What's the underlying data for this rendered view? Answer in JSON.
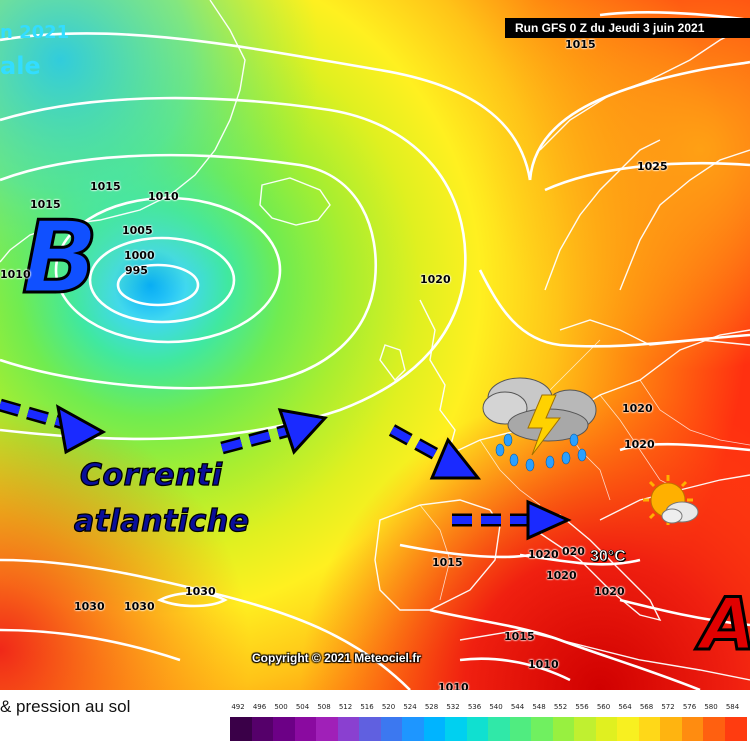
{
  "map": {
    "title_partial": "n 2021",
    "title_partial_2": "ale",
    "run_label": "Run GFS 0 Z du Jeudi 3 juin 2021",
    "copyright": "Copyright © 2021 Meteociel.fr",
    "low_label": "B",
    "high_label": "A",
    "caption_line1": "Correnti",
    "caption_line2": "atlantiche",
    "temperature": "30°C",
    "colors": {
      "low_blue": "#1050ff",
      "high_red": "#e00000",
      "caption_blue": "#0a0f9a",
      "arrow_blue": "#1a2aff"
    },
    "isobar_labels": [
      {
        "text": "1015",
        "id": "iso-1015-a"
      },
      {
        "text": "1015",
        "id": "iso-1015-b"
      },
      {
        "text": "1010",
        "id": "iso-1010-a"
      },
      {
        "text": "1005",
        "id": "iso-1005"
      },
      {
        "text": "1000",
        "id": "iso-1000"
      },
      {
        "text": "995",
        "id": "iso-995"
      },
      {
        "text": "1010",
        "id": "iso-1010-b"
      },
      {
        "text": "1025",
        "id": "iso-1025"
      },
      {
        "text": "1020",
        "id": "iso-1020-a"
      },
      {
        "text": "1020",
        "id": "iso-1020-b"
      },
      {
        "text": "1020",
        "id": "iso-1020-c"
      },
      {
        "text": "1015",
        "id": "iso-1015-c"
      },
      {
        "text": "1020",
        "id": "iso-1020-d"
      },
      {
        "text": "020",
        "id": "iso-020"
      },
      {
        "text": "1020",
        "id": "iso-1020-e"
      },
      {
        "text": "1020",
        "id": "iso-1020-f"
      },
      {
        "text": "1030",
        "id": "iso-1030-a"
      },
      {
        "text": "1030",
        "id": "iso-1030-b"
      },
      {
        "text": "1030",
        "id": "iso-1030-c"
      },
      {
        "text": "1015",
        "id": "iso-1015-d"
      },
      {
        "text": "1010",
        "id": "iso-1010-c"
      },
      {
        "text": "1010",
        "id": "iso-1010-d"
      },
      {
        "text": "1015",
        "id": "iso-1015-top"
      }
    ],
    "icons": [
      "thunderstorm-icon",
      "sun-cloud-icon"
    ]
  },
  "legend": {
    "title": "& pression au sol",
    "values": [
      "492",
      "496",
      "500",
      "504",
      "508",
      "512",
      "516",
      "520",
      "524",
      "528",
      "532",
      "536",
      "540",
      "544",
      "548",
      "552",
      "556",
      "560",
      "564",
      "568",
      "572",
      "576",
      "580",
      "584"
    ],
    "colors": [
      "#3a0048",
      "#55006a",
      "#6c0086",
      "#8a0aa0",
      "#a020b8",
      "#8a40d0",
      "#6060e0",
      "#3c78f0",
      "#1e96ff",
      "#00b4ff",
      "#00d0f0",
      "#10e0d0",
      "#30e8a8",
      "#50ec80",
      "#70f060",
      "#98f040",
      "#c0f030",
      "#e0f020",
      "#f8f020",
      "#ffd818",
      "#ffb410",
      "#ff8c10",
      "#ff6010",
      "#ff3c10"
    ]
  }
}
